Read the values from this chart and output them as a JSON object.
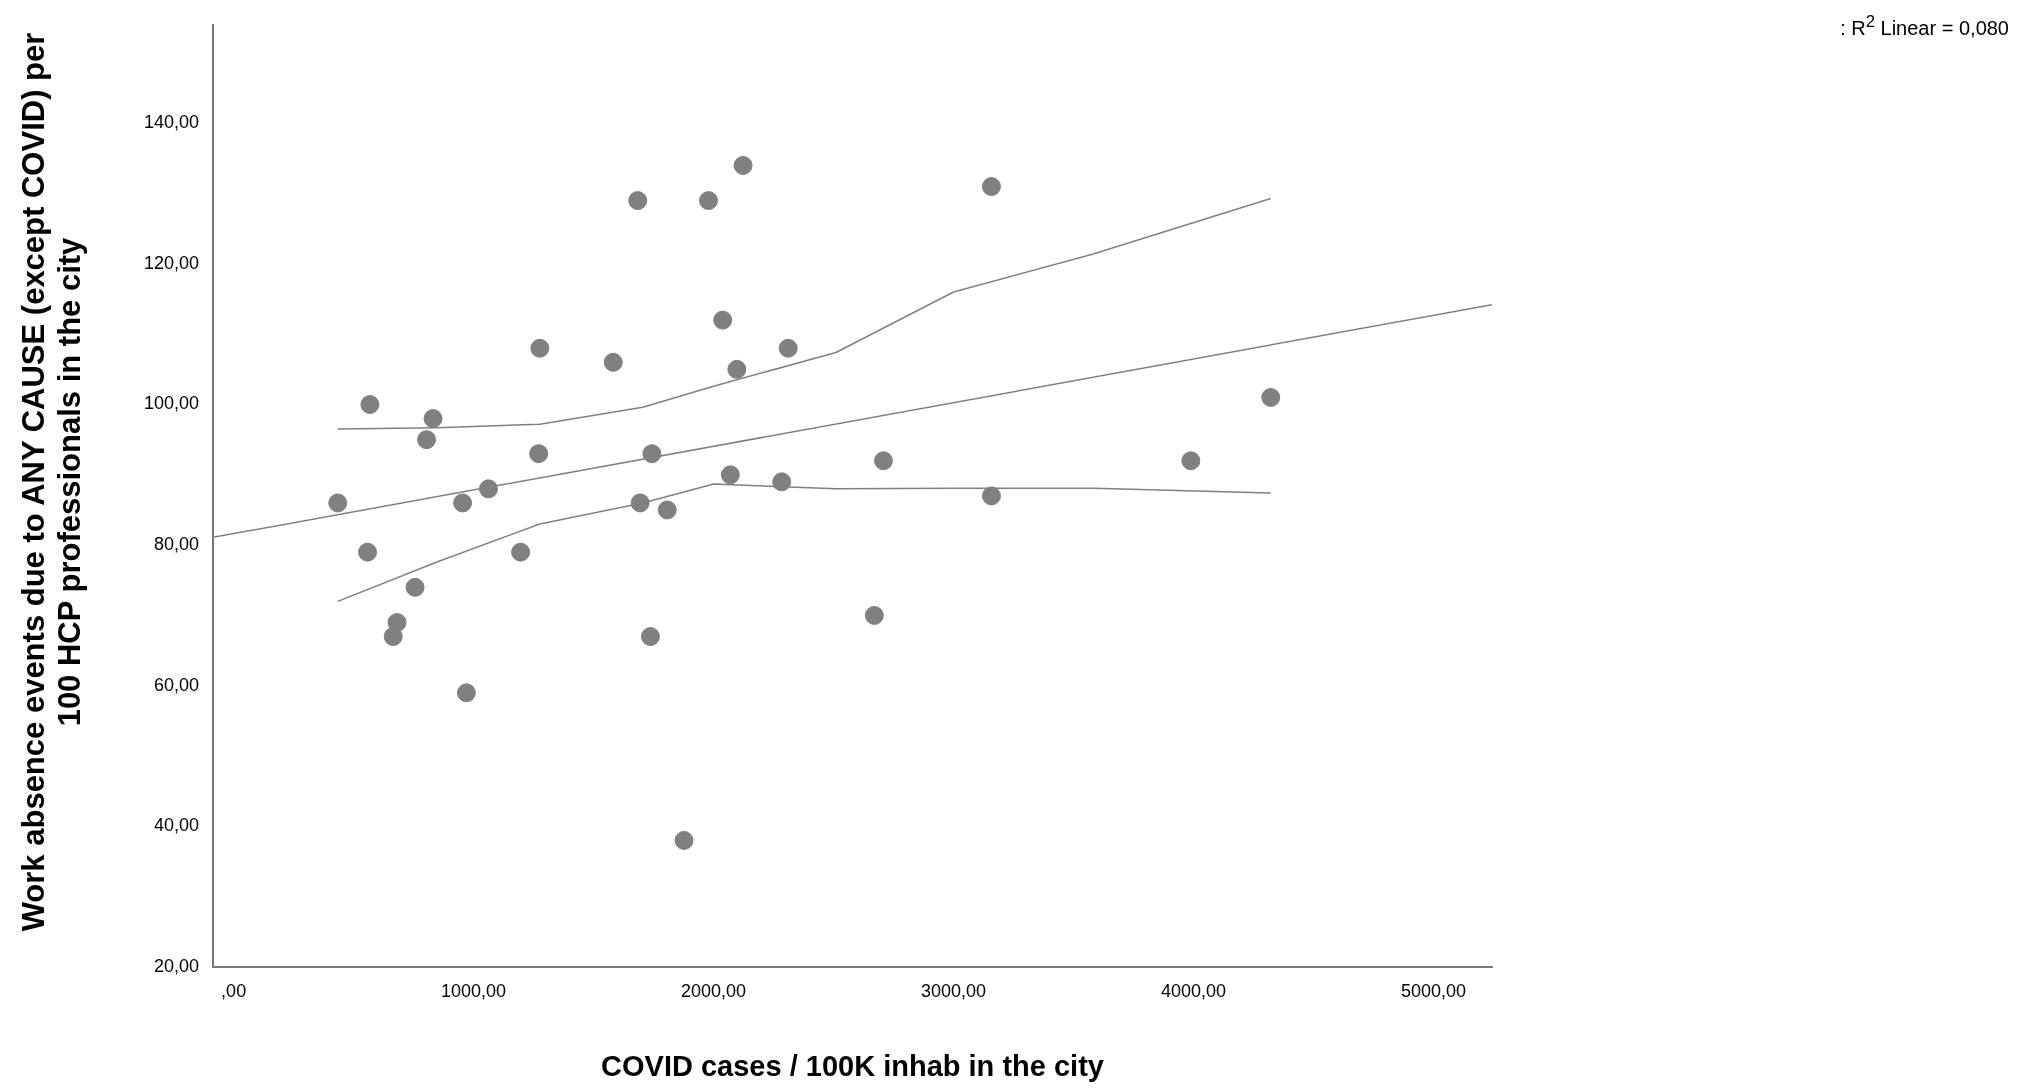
{
  "chart_data": {
    "type": "scatter",
    "xlabel": "COVID cases / 100K inhab in the city",
    "ylabel": "Work absence events due to ANY CAUSE (except COVID) per 100 HCP professionals in the city",
    "annotations": [
      ": R$^{2}$ Linear = 0,080"
    ],
    "xlim": [
      -86,
      5244
    ],
    "xticks": [
      {
        "value": 0,
        "label": ",00"
      },
      {
        "value": 1000,
        "label": "1000,00"
      },
      {
        "value": 2000,
        "label": "2000,00"
      },
      {
        "value": 3000,
        "label": "3000,00"
      },
      {
        "value": 4000,
        "label": "4000,00"
      },
      {
        "value": 5000,
        "label": "5000,00"
      }
    ],
    "ylim": [
      20,
      154
    ],
    "yticks": [
      {
        "value": 20,
        "label": "20,00"
      },
      {
        "value": 40,
        "label": "40,00"
      },
      {
        "value": 60,
        "label": "60,00"
      },
      {
        "value": 80,
        "label": "80,00"
      },
      {
        "value": 100,
        "label": "100,00"
      },
      {
        "value": 120,
        "label": "120,00"
      },
      {
        "value": 140,
        "label": "140,00"
      }
    ],
    "grid": false,
    "legend": false,
    "series": [
      {
        "type": "scatter",
        "marker": "circle",
        "color": "#808080",
        "x": [
          434,
          558,
          568,
          665,
          681,
          756,
          804,
          831,
          954,
          970,
          1062,
          1196,
          1271,
          1276,
          1582,
          1684,
          1694,
          1743,
          1737,
          1807,
          1877,
          1979,
          2038,
          2070,
          2097,
          2123,
          2284,
          2311,
          2670,
          2708,
          3158,
          3158,
          3989,
          4322
        ],
        "values": [
          86,
          79,
          100,
          67,
          69,
          74,
          95,
          98,
          86,
          59,
          88,
          79,
          93,
          108,
          106,
          129,
          86,
          93,
          67,
          85,
          38,
          129,
          112,
          90,
          105,
          134,
          89,
          108,
          70,
          92,
          131,
          87,
          92,
          101
        ]
      },
      {
        "type": "line",
        "marker": "none",
        "color": "#808080",
        "x": [
          -86,
          5244
        ],
        "values": [
          81.1,
          114.2
        ]
      },
      {
        "type": "line",
        "marker": "none",
        "color": "#808080",
        "x": [
          434,
          847,
          1276,
          1705,
          2000,
          2510,
          3000,
          3582,
          4322
        ],
        "values": [
          96.5,
          96.7,
          97.2,
          99.6,
          102.6,
          107.4,
          116,
          121.4,
          129.3
        ]
      },
      {
        "type": "line",
        "marker": "none",
        "color": "#808080",
        "x": [
          434,
          847,
          1276,
          1705,
          2000,
          2510,
          3000,
          3582,
          4322
        ],
        "values": [
          72,
          77.6,
          83,
          86,
          88.7,
          88,
          88.1,
          88.1,
          87.4
        ]
      }
    ]
  }
}
